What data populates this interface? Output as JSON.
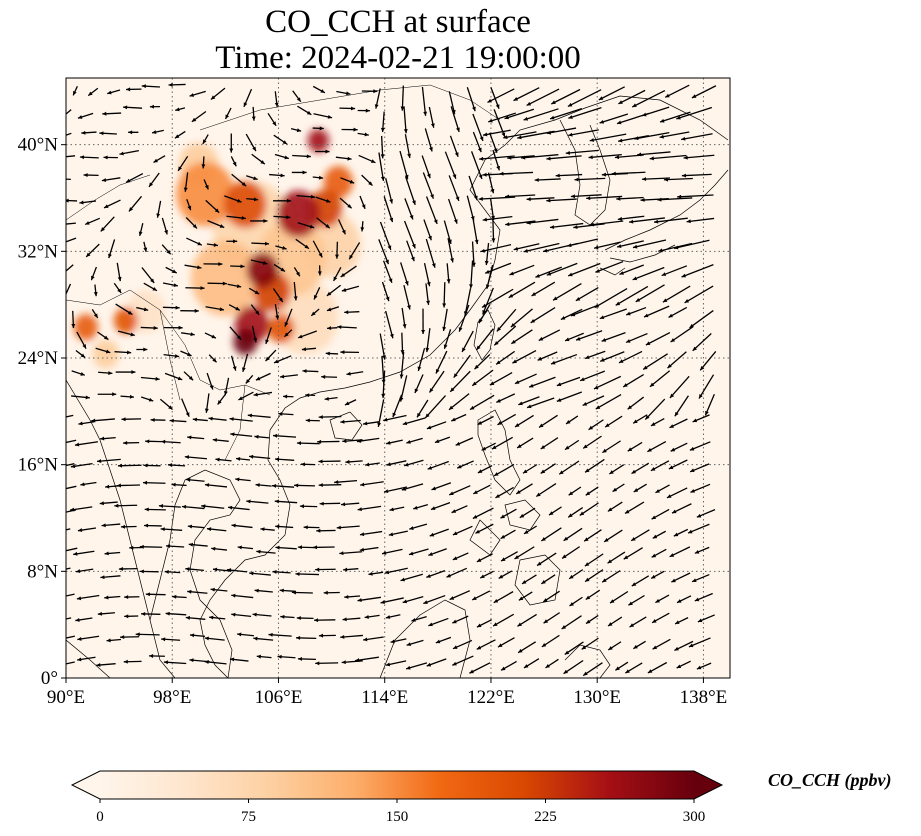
{
  "title": {
    "line1": "CO_CCH at surface",
    "line2": "Time: 2024-02-21 19:00:00"
  },
  "map": {
    "lon_range": [
      90,
      140
    ],
    "lat_range": [
      0,
      45
    ],
    "lat_ticks": [
      {
        "value": 0,
        "label": "0°"
      },
      {
        "value": 8,
        "label": "8°N"
      },
      {
        "value": 16,
        "label": "16°N"
      },
      {
        "value": 24,
        "label": "24°N"
      },
      {
        "value": 32,
        "label": "32°N"
      },
      {
        "value": 40,
        "label": "40°N"
      }
    ],
    "lon_ticks": [
      {
        "value": 90,
        "label": "90°E"
      },
      {
        "value": 98,
        "label": "98°E"
      },
      {
        "value": 106,
        "label": "106°E"
      },
      {
        "value": 114,
        "label": "114°E"
      },
      {
        "value": 122,
        "label": "122°E"
      },
      {
        "value": 130,
        "label": "130°E"
      },
      {
        "value": 138,
        "label": "138°E"
      }
    ],
    "gridlines": true,
    "background_color": "#fff5eb",
    "hotspots": [
      {
        "lon": 100.5,
        "lat": 36.3,
        "r": 2.2,
        "level": 150
      },
      {
        "lon": 103.5,
        "lat": 35.5,
        "r": 1.6,
        "level": 210
      },
      {
        "lon": 107.5,
        "lat": 34.8,
        "r": 1.6,
        "level": 260
      },
      {
        "lon": 109.5,
        "lat": 35.2,
        "r": 1.3,
        "level": 220
      },
      {
        "lon": 110.5,
        "lat": 37.2,
        "r": 1.1,
        "level": 190
      },
      {
        "lon": 109.0,
        "lat": 40.3,
        "r": 0.8,
        "level": 260
      },
      {
        "lon": 104.8,
        "lat": 30.6,
        "r": 1.2,
        "level": 280
      },
      {
        "lon": 105.5,
        "lat": 29.0,
        "r": 1.4,
        "level": 220
      },
      {
        "lon": 104.0,
        "lat": 26.5,
        "r": 1.3,
        "level": 260
      },
      {
        "lon": 103.5,
        "lat": 25.2,
        "r": 0.9,
        "level": 300
      },
      {
        "lon": 106.2,
        "lat": 26.2,
        "r": 1.0,
        "level": 200
      },
      {
        "lon": 102.0,
        "lat": 30.0,
        "r": 2.6,
        "level": 110
      },
      {
        "lon": 107.0,
        "lat": 31.5,
        "r": 2.6,
        "level": 100
      },
      {
        "lon": 110.0,
        "lat": 32.5,
        "r": 2.2,
        "level": 80
      },
      {
        "lon": 104.0,
        "lat": 34.0,
        "r": 3.0,
        "level": 75
      },
      {
        "lon": 108.0,
        "lat": 27.0,
        "r": 2.5,
        "level": 60
      },
      {
        "lon": 100.0,
        "lat": 38.5,
        "r": 1.5,
        "level": 90
      },
      {
        "lon": 91.5,
        "lat": 26.3,
        "r": 0.9,
        "level": 190
      },
      {
        "lon": 94.5,
        "lat": 26.8,
        "r": 0.9,
        "level": 200
      },
      {
        "lon": 93.0,
        "lat": 24.3,
        "r": 1.0,
        "level": 90
      },
      {
        "lon": 96.0,
        "lat": 27.5,
        "r": 1.5,
        "level": 50
      }
    ],
    "coastline_color": "#000000",
    "vector_color": "#000000"
  },
  "colorbar": {
    "label": "CO_CCH (ppbv)",
    "min": 0,
    "max": 300,
    "ticks": [
      {
        "value": 0,
        "label": "0"
      },
      {
        "value": 75,
        "label": "75"
      },
      {
        "value": 150,
        "label": "150"
      },
      {
        "value": 225,
        "label": "225"
      },
      {
        "value": 300,
        "label": "300"
      }
    ],
    "colormap": [
      "#fff5eb",
      "#fee6ce",
      "#fdd0a2",
      "#fdae6b",
      "#f16913",
      "#d94801",
      "#a50f15",
      "#67000d"
    ],
    "extend": "both"
  }
}
